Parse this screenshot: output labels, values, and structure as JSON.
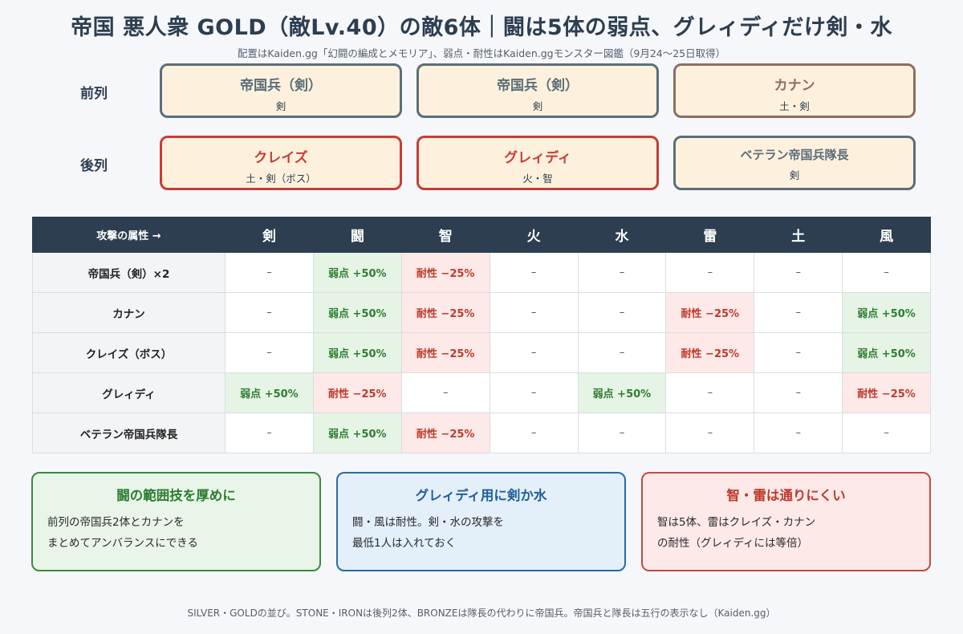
{
  "title": "帝国 悪人衆 GOLD（敵Lv.40）の敵6体｜闘は5体の弱点、グレィディだけ剣・水",
  "subtitle": "配置はKaiden.gg「幻闘の編成とメモリア」、弱点・耐性はKaiden.ggモンスター図鑑（9月24〜25日取得）",
  "formation": {
    "front_label": "前列",
    "back_label": "後列",
    "front": [
      {
        "name": "帝国兵（剣）",
        "sub": "剣"
      },
      {
        "name": "帝国兵（剣）",
        "sub": "剣"
      },
      {
        "name": "カナン",
        "sub": "土・剣"
      }
    ],
    "back": [
      {
        "name": "クレイズ",
        "sub": "土・剣（ボス）"
      },
      {
        "name": "グレィディ",
        "sub": "火・智"
      },
      {
        "name": "ベテラン帝国兵隊長",
        "sub": "剣"
      }
    ]
  },
  "table": {
    "corner": "攻撃の属性 →",
    "columns": [
      "剣",
      "闘",
      "智",
      "火",
      "水",
      "雷",
      "土",
      "風"
    ],
    "rows": [
      {
        "name": "帝国兵（剣）×2",
        "cells": [
          "–",
          "弱点 +50%",
          "耐性 −25%",
          "–",
          "–",
          "–",
          "–",
          "–"
        ]
      },
      {
        "name": "カナン",
        "cells": [
          "–",
          "弱点 +50%",
          "耐性 −25%",
          "–",
          "–",
          "耐性 −25%",
          "–",
          "弱点 +50%"
        ]
      },
      {
        "name": "クレイズ（ボス）",
        "cells": [
          "–",
          "弱点 +50%",
          "耐性 −25%",
          "–",
          "–",
          "耐性 −25%",
          "–",
          "弱点 +50%"
        ]
      },
      {
        "name": "グレィディ",
        "cells": [
          "弱点 +50%",
          "耐性 −25%",
          "–",
          "–",
          "弱点 +50%",
          "–",
          "–",
          "耐性 −25%"
        ]
      },
      {
        "name": "ベテラン帝国兵隊長",
        "cells": [
          "–",
          "弱点 +50%",
          "耐性 −25%",
          "–",
          "–",
          "–",
          "–",
          "–"
        ]
      }
    ]
  },
  "notes": [
    {
      "title": "闘の範囲技を厚めに",
      "line1": "前列の帝国兵2体とカナンを",
      "line2": "まとめてアンバランスにできる"
    },
    {
      "title": "グレィディ用に剣か水",
      "line1": "闘・風は耐性。剣・水の攻撃を",
      "line2": "最低1人は入れておく"
    },
    {
      "title": "智・雷は通りにくい",
      "line1": "智は5体、雷はクレイズ・カナン",
      "line2": "の耐性（グレィディには等倍）"
    }
  ],
  "footer": "SILVER・GOLDの並び。STONE・IRONは後列2体、BRONZEは隊長の代わりに帝国兵。帝国兵と隊長は五行の表示なし（Kaiden.gg）",
  "colors": {
    "header_dark": "#2c3e50",
    "card_fill": "#fdf1dd",
    "weak_fill": "#e5f4e4",
    "weak_text": "#2e7d32",
    "resist_fill": "#fde9e8",
    "resist_text": "#c0392b"
  }
}
